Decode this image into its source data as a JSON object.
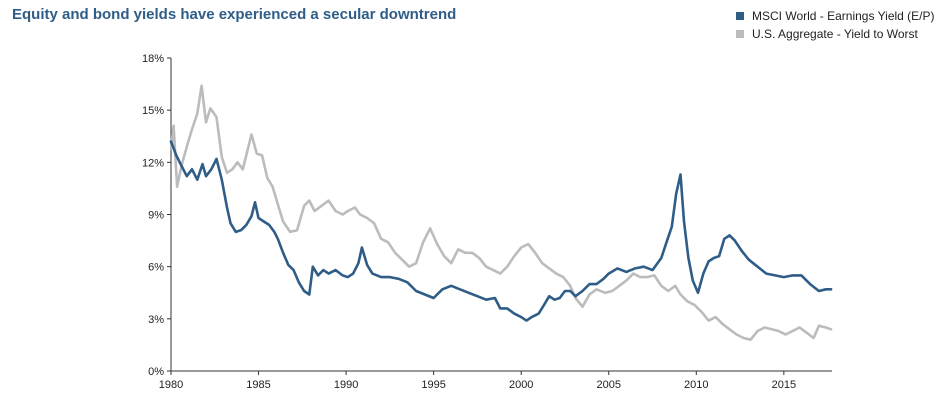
{
  "chart_data": {
    "type": "line",
    "title": "Equity and bond yields have experienced a secular downtrend",
    "xlabel": "",
    "ylabel": "",
    "xlim": [
      1980,
      2017.75
    ],
    "ylim": [
      0,
      18
    ],
    "x_ticks": [
      1980,
      1985,
      1990,
      1995,
      2000,
      2005,
      2010,
      2015
    ],
    "x_tick_labels": [
      "1980",
      "1985",
      "1990",
      "1995",
      "2000",
      "2005",
      "2010",
      "2015"
    ],
    "y_ticks": [
      0,
      3,
      6,
      9,
      12,
      15,
      18
    ],
    "y_tick_labels": [
      "0%",
      "3%",
      "6%",
      "9%",
      "12%",
      "15%",
      "18%"
    ],
    "grid": false,
    "legend_position": "top-right",
    "series": [
      {
        "name": "MSCI World - Earnings Yield (E/P)",
        "color": "#2f5d87",
        "points": [
          [
            1980.0,
            13.2
          ],
          [
            1980.3,
            12.4
          ],
          [
            1980.6,
            11.8
          ],
          [
            1980.9,
            11.2
          ],
          [
            1981.2,
            11.6
          ],
          [
            1981.5,
            11.0
          ],
          [
            1981.8,
            11.9
          ],
          [
            1982.0,
            11.2
          ],
          [
            1982.3,
            11.6
          ],
          [
            1982.6,
            12.2
          ],
          [
            1982.9,
            11.0
          ],
          [
            1983.2,
            9.4
          ],
          [
            1983.4,
            8.5
          ],
          [
            1983.7,
            8.0
          ],
          [
            1984.0,
            8.1
          ],
          [
            1984.3,
            8.4
          ],
          [
            1984.6,
            8.9
          ],
          [
            1984.8,
            9.7
          ],
          [
            1985.0,
            8.8
          ],
          [
            1985.3,
            8.6
          ],
          [
            1985.6,
            8.4
          ],
          [
            1985.9,
            8.0
          ],
          [
            1986.1,
            7.6
          ],
          [
            1986.4,
            6.8
          ],
          [
            1986.7,
            6.1
          ],
          [
            1987.0,
            5.8
          ],
          [
            1987.3,
            5.1
          ],
          [
            1987.6,
            4.6
          ],
          [
            1987.9,
            4.4
          ],
          [
            1988.1,
            6.0
          ],
          [
            1988.4,
            5.5
          ],
          [
            1988.7,
            5.8
          ],
          [
            1989.0,
            5.6
          ],
          [
            1989.4,
            5.8
          ],
          [
            1989.8,
            5.5
          ],
          [
            1990.1,
            5.4
          ],
          [
            1990.4,
            5.6
          ],
          [
            1990.7,
            6.2
          ],
          [
            1990.9,
            7.1
          ],
          [
            1991.2,
            6.1
          ],
          [
            1991.5,
            5.6
          ],
          [
            1992.0,
            5.4
          ],
          [
            1992.5,
            5.4
          ],
          [
            1993.0,
            5.3
          ],
          [
            1993.5,
            5.1
          ],
          [
            1994.0,
            4.6
          ],
          [
            1994.5,
            4.4
          ],
          [
            1995.0,
            4.2
          ],
          [
            1995.5,
            4.7
          ],
          [
            1996.0,
            4.9
          ],
          [
            1996.5,
            4.7
          ],
          [
            1997.0,
            4.5
          ],
          [
            1997.5,
            4.3
          ],
          [
            1998.0,
            4.1
          ],
          [
            1998.5,
            4.2
          ],
          [
            1998.8,
            3.6
          ],
          [
            1999.2,
            3.6
          ],
          [
            1999.6,
            3.3
          ],
          [
            2000.0,
            3.1
          ],
          [
            2000.3,
            2.9
          ],
          [
            2000.6,
            3.1
          ],
          [
            2001.0,
            3.3
          ],
          [
            2001.3,
            3.8
          ],
          [
            2001.6,
            4.3
          ],
          [
            2001.9,
            4.1
          ],
          [
            2002.2,
            4.2
          ],
          [
            2002.5,
            4.6
          ],
          [
            2002.8,
            4.6
          ],
          [
            2003.1,
            4.3
          ],
          [
            2003.5,
            4.6
          ],
          [
            2003.9,
            5.0
          ],
          [
            2004.3,
            5.0
          ],
          [
            2004.7,
            5.3
          ],
          [
            2005.0,
            5.6
          ],
          [
            2005.5,
            5.9
          ],
          [
            2006.0,
            5.7
          ],
          [
            2006.5,
            5.9
          ],
          [
            2007.0,
            6.0
          ],
          [
            2007.5,
            5.8
          ],
          [
            2008.0,
            6.5
          ],
          [
            2008.3,
            7.4
          ],
          [
            2008.6,
            8.3
          ],
          [
            2008.85,
            10.2
          ],
          [
            2009.1,
            11.3
          ],
          [
            2009.3,
            8.6
          ],
          [
            2009.55,
            6.5
          ],
          [
            2009.8,
            5.2
          ],
          [
            2010.1,
            4.5
          ],
          [
            2010.4,
            5.6
          ],
          [
            2010.7,
            6.3
          ],
          [
            2011.0,
            6.5
          ],
          [
            2011.3,
            6.6
          ],
          [
            2011.6,
            7.6
          ],
          [
            2011.9,
            7.8
          ],
          [
            2012.2,
            7.5
          ],
          [
            2012.6,
            6.9
          ],
          [
            2013.0,
            6.4
          ],
          [
            2013.5,
            6.0
          ],
          [
            2014.0,
            5.6
          ],
          [
            2014.5,
            5.5
          ],
          [
            2015.0,
            5.4
          ],
          [
            2015.5,
            5.5
          ],
          [
            2016.0,
            5.5
          ],
          [
            2016.5,
            5.0
          ],
          [
            2017.0,
            4.6
          ],
          [
            2017.4,
            4.7
          ],
          [
            2017.7,
            4.7
          ]
        ]
      },
      {
        "name": "U.S. Aggregate - Yield to Worst",
        "color": "#bcbcbc",
        "points": [
          [
            1980.0,
            12.8
          ],
          [
            1980.15,
            14.1
          ],
          [
            1980.35,
            10.6
          ],
          [
            1980.6,
            11.8
          ],
          [
            1980.9,
            12.9
          ],
          [
            1981.2,
            13.9
          ],
          [
            1981.5,
            14.8
          ],
          [
            1981.75,
            16.4
          ],
          [
            1982.0,
            14.3
          ],
          [
            1982.25,
            15.1
          ],
          [
            1982.6,
            14.6
          ],
          [
            1982.9,
            12.3
          ],
          [
            1983.2,
            11.4
          ],
          [
            1983.5,
            11.6
          ],
          [
            1983.8,
            12.0
          ],
          [
            1984.1,
            11.6
          ],
          [
            1984.4,
            12.8
          ],
          [
            1984.6,
            13.6
          ],
          [
            1984.9,
            12.5
          ],
          [
            1985.2,
            12.4
          ],
          [
            1985.5,
            11.1
          ],
          [
            1985.8,
            10.6
          ],
          [
            1986.1,
            9.6
          ],
          [
            1986.4,
            8.6
          ],
          [
            1986.8,
            8.0
          ],
          [
            1987.2,
            8.1
          ],
          [
            1987.6,
            9.5
          ],
          [
            1987.9,
            9.8
          ],
          [
            1988.2,
            9.2
          ],
          [
            1988.6,
            9.5
          ],
          [
            1989.0,
            9.8
          ],
          [
            1989.4,
            9.2
          ],
          [
            1989.8,
            9.0
          ],
          [
            1990.1,
            9.2
          ],
          [
            1990.5,
            9.4
          ],
          [
            1990.8,
            9.0
          ],
          [
            1991.2,
            8.8
          ],
          [
            1991.6,
            8.5
          ],
          [
            1992.0,
            7.6
          ],
          [
            1992.4,
            7.4
          ],
          [
            1992.8,
            6.8
          ],
          [
            1993.2,
            6.4
          ],
          [
            1993.6,
            6.0
          ],
          [
            1994.0,
            6.2
          ],
          [
            1994.4,
            7.4
          ],
          [
            1994.8,
            8.2
          ],
          [
            1995.2,
            7.3
          ],
          [
            1995.6,
            6.6
          ],
          [
            1996.0,
            6.2
          ],
          [
            1996.4,
            7.0
          ],
          [
            1996.8,
            6.8
          ],
          [
            1997.2,
            6.8
          ],
          [
            1997.6,
            6.5
          ],
          [
            1998.0,
            6.0
          ],
          [
            1998.4,
            5.8
          ],
          [
            1998.8,
            5.6
          ],
          [
            1999.2,
            6.0
          ],
          [
            1999.6,
            6.6
          ],
          [
            2000.0,
            7.1
          ],
          [
            2000.4,
            7.3
          ],
          [
            2000.8,
            6.8
          ],
          [
            2001.2,
            6.2
          ],
          [
            2001.6,
            5.9
          ],
          [
            2002.0,
            5.6
          ],
          [
            2002.4,
            5.4
          ],
          [
            2002.8,
            4.9
          ],
          [
            2003.1,
            4.2
          ],
          [
            2003.5,
            3.7
          ],
          [
            2003.9,
            4.4
          ],
          [
            2004.3,
            4.7
          ],
          [
            2004.8,
            4.5
          ],
          [
            2005.2,
            4.6
          ],
          [
            2005.6,
            4.9
          ],
          [
            2006.0,
            5.2
          ],
          [
            2006.4,
            5.6
          ],
          [
            2006.8,
            5.4
          ],
          [
            2007.2,
            5.4
          ],
          [
            2007.6,
            5.5
          ],
          [
            2008.0,
            4.9
          ],
          [
            2008.4,
            4.6
          ],
          [
            2008.8,
            4.9
          ],
          [
            2009.1,
            4.4
          ],
          [
            2009.5,
            4.0
          ],
          [
            2009.9,
            3.8
          ],
          [
            2010.3,
            3.4
          ],
          [
            2010.7,
            2.9
          ],
          [
            2011.1,
            3.1
          ],
          [
            2011.5,
            2.7
          ],
          [
            2011.9,
            2.4
          ],
          [
            2012.3,
            2.1
          ],
          [
            2012.7,
            1.9
          ],
          [
            2013.1,
            1.8
          ],
          [
            2013.5,
            2.3
          ],
          [
            2013.9,
            2.5
          ],
          [
            2014.3,
            2.4
          ],
          [
            2014.7,
            2.3
          ],
          [
            2015.1,
            2.1
          ],
          [
            2015.5,
            2.3
          ],
          [
            2015.9,
            2.5
          ],
          [
            2016.3,
            2.2
          ],
          [
            2016.7,
            1.9
          ],
          [
            2017.0,
            2.6
          ],
          [
            2017.4,
            2.5
          ],
          [
            2017.7,
            2.4
          ]
        ]
      }
    ]
  }
}
